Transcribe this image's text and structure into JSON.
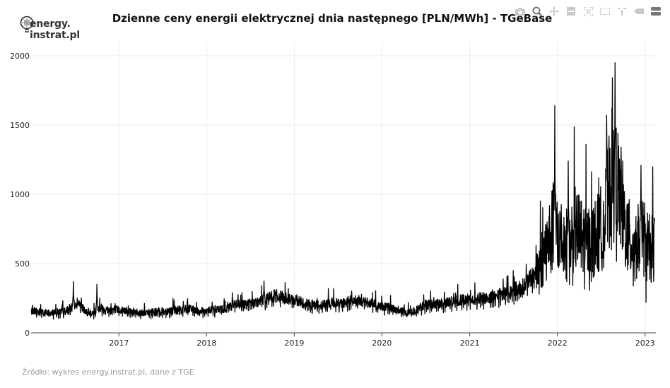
{
  "logo": {
    "text_line1": "energy.",
    "text_line2": "instrat.pl"
  },
  "title": "Dzienne ceny energii elektrycznej dnia następnego [PLN/MWh] - TGeBase",
  "source": "Źródło: wykres energy.instrat.pl, dane z TGE",
  "modebar": [
    "camera-icon",
    "zoom-icon",
    "pan-icon",
    "zoom-in-icon",
    "zoom-out-icon",
    "autoscale-icon",
    "reset-axes-icon",
    "spike-lines-icon",
    "hover-closest-icon",
    "hover-compare-icon"
  ],
  "chart_data": {
    "type": "line",
    "title": "Dzienne ceny energii elektrycznej dnia następnego [PLN/MWh] - TGeBase",
    "xlabel": "",
    "ylabel": "",
    "x_ticks": [
      "2017",
      "2018",
      "2019",
      "2020",
      "2021",
      "2022",
      "2023"
    ],
    "y_ticks": [
      "0",
      "500",
      "1000",
      "1500",
      "2000"
    ],
    "xlim": [
      "2016-01-01",
      "2023-02-15"
    ],
    "ylim": [
      0,
      2000
    ],
    "grid": true,
    "line_color": "#000000",
    "series": [
      {
        "x": [
          "2016-01",
          "2016-02",
          "2016-03",
          "2016-04",
          "2016-05",
          "2016-06",
          "2016-07",
          "2016-08",
          "2016-09",
          "2016-10",
          "2016-11",
          "2016-12",
          "2017-01",
          "2017-02",
          "2017-03",
          "2017-04",
          "2017-05",
          "2017-06",
          "2017-07",
          "2017-08",
          "2017-09",
          "2017-10",
          "2017-11",
          "2017-12",
          "2018-01",
          "2018-02",
          "2018-03",
          "2018-04",
          "2018-05",
          "2018-06",
          "2018-07",
          "2018-08",
          "2018-09",
          "2018-10",
          "2018-11",
          "2018-12",
          "2019-01",
          "2019-02",
          "2019-03",
          "2019-04",
          "2019-05",
          "2019-06",
          "2019-07",
          "2019-08",
          "2019-09",
          "2019-10",
          "2019-11",
          "2019-12",
          "2020-01",
          "2020-02",
          "2020-03",
          "2020-04",
          "2020-05",
          "2020-06",
          "2020-07",
          "2020-08",
          "2020-09",
          "2020-10",
          "2020-11",
          "2020-12",
          "2021-01",
          "2021-02",
          "2021-03",
          "2021-04",
          "2021-05",
          "2021-06",
          "2021-07",
          "2021-08",
          "2021-09",
          "2021-10",
          "2021-11",
          "2021-12",
          "2022-01",
          "2022-02",
          "2022-03",
          "2022-04",
          "2022-05",
          "2022-06",
          "2022-07",
          "2022-08",
          "2022-09",
          "2022-10",
          "2022-11",
          "2022-12",
          "2023-01",
          "2023-02"
        ],
        "y": [
          160,
          150,
          145,
          150,
          155,
          175,
          230,
          150,
          145,
          185,
          165,
          170,
          165,
          160,
          150,
          145,
          150,
          155,
          160,
          165,
          170,
          175,
          165,
          160,
          165,
          170,
          175,
          200,
          210,
          205,
          220,
          230,
          260,
          270,
          255,
          240,
          235,
          215,
          205,
          200,
          210,
          220,
          215,
          230,
          235,
          225,
          215,
          200,
          190,
          175,
          165,
          145,
          160,
          190,
          205,
          210,
          215,
          225,
          235,
          240,
          245,
          250,
          255,
          265,
          280,
          300,
          320,
          340,
          400,
          480,
          620,
          760,
          700,
          620,
          760,
          680,
          650,
          700,
          800,
          1150,
          1050,
          720,
          620,
          750,
          600,
          620
        ]
      }
    ],
    "peaks": [
      {
        "x": "2016-06-25",
        "y": 370
      },
      {
        "x": "2016-10-01",
        "y": 350
      },
      {
        "x": "2018-08-28",
        "y": 375
      },
      {
        "x": "2021-12-21",
        "y": 1640
      },
      {
        "x": "2022-02-15",
        "y": 1240
      },
      {
        "x": "2022-07-25",
        "y": 1570
      },
      {
        "x": "2022-08-29",
        "y": 1950
      },
      {
        "x": "2022-12-15",
        "y": 1210
      },
      {
        "x": "2023-01-05",
        "y": 220
      }
    ]
  }
}
